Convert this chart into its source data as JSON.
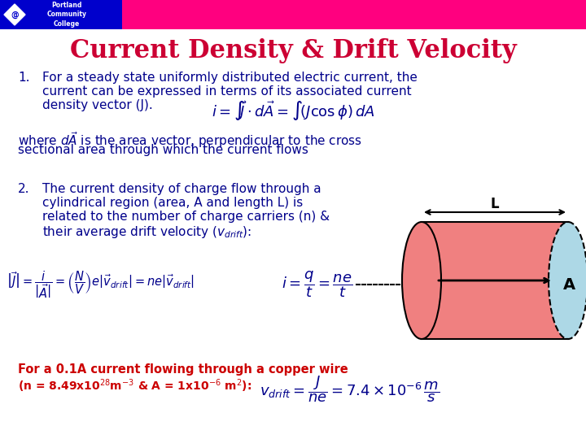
{
  "title": "Current Density & Drift Velocity",
  "title_color": "#CC0033",
  "title_fontsize": 22,
  "background_color": "#FFFFFF",
  "header_blue_color": "#0000CC",
  "header_pink_color": "#FF007F",
  "text_color_dark": "#00008B",
  "text_color_red": "#CC0000",
  "body_fontsize": 11,
  "item1_line1": "For a steady state uniformly distributed electric current, the",
  "item1_line2": "current can be expressed in terms of its associated current",
  "item1_line3": "density vector (J).",
  "where_line1": "where $d\\vec{A}$ is the area vector, perpendicular to the cross",
  "where_line2": "sectional area through which the current flows",
  "item2_line1": "The current density of charge flow through a",
  "item2_line2": "cylindrical region (area, A and length L) is",
  "item2_line3": "related to the number of charge carriers (n) &",
  "item2_line4": "their average drift velocity ($v_{drift}$):",
  "red_line1": "For a 0.1A current flowing through a copper wire",
  "red_line2": "(n = 8.49x10$^{28}$m$^{-3}$ & A = 1x10$^{-6}$ m$^{2}$):",
  "cyl_front_color": "#F08080",
  "cyl_back_color": "#ADD8E6",
  "cyl_body_color": "#F08080"
}
